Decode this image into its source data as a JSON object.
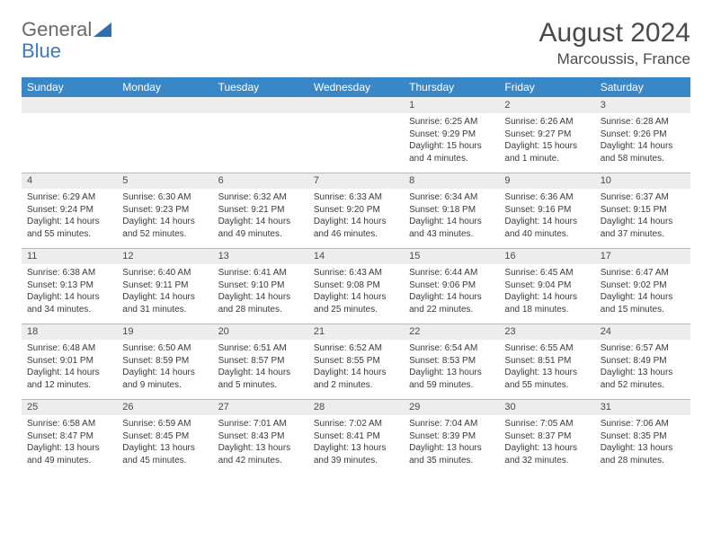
{
  "logo": {
    "text1": "General",
    "text2": "Blue"
  },
  "title": "August 2024",
  "location": "Marcoussis, France",
  "colors": {
    "header_bg": "#3a87c7",
    "header_text": "#ffffff",
    "daynum_bg": "#ededed",
    "text": "#3a3a3a",
    "border": "#b8b8b8"
  },
  "day_headers": [
    "Sunday",
    "Monday",
    "Tuesday",
    "Wednesday",
    "Thursday",
    "Friday",
    "Saturday"
  ],
  "weeks": [
    [
      {
        "n": "",
        "sr": "",
        "ss": "",
        "dl": ""
      },
      {
        "n": "",
        "sr": "",
        "ss": "",
        "dl": ""
      },
      {
        "n": "",
        "sr": "",
        "ss": "",
        "dl": ""
      },
      {
        "n": "",
        "sr": "",
        "ss": "",
        "dl": ""
      },
      {
        "n": "1",
        "sr": "6:25 AM",
        "ss": "9:29 PM",
        "dl": "15 hours and 4 minutes."
      },
      {
        "n": "2",
        "sr": "6:26 AM",
        "ss": "9:27 PM",
        "dl": "15 hours and 1 minute."
      },
      {
        "n": "3",
        "sr": "6:28 AM",
        "ss": "9:26 PM",
        "dl": "14 hours and 58 minutes."
      }
    ],
    [
      {
        "n": "4",
        "sr": "6:29 AM",
        "ss": "9:24 PM",
        "dl": "14 hours and 55 minutes."
      },
      {
        "n": "5",
        "sr": "6:30 AM",
        "ss": "9:23 PM",
        "dl": "14 hours and 52 minutes."
      },
      {
        "n": "6",
        "sr": "6:32 AM",
        "ss": "9:21 PM",
        "dl": "14 hours and 49 minutes."
      },
      {
        "n": "7",
        "sr": "6:33 AM",
        "ss": "9:20 PM",
        "dl": "14 hours and 46 minutes."
      },
      {
        "n": "8",
        "sr": "6:34 AM",
        "ss": "9:18 PM",
        "dl": "14 hours and 43 minutes."
      },
      {
        "n": "9",
        "sr": "6:36 AM",
        "ss": "9:16 PM",
        "dl": "14 hours and 40 minutes."
      },
      {
        "n": "10",
        "sr": "6:37 AM",
        "ss": "9:15 PM",
        "dl": "14 hours and 37 minutes."
      }
    ],
    [
      {
        "n": "11",
        "sr": "6:38 AM",
        "ss": "9:13 PM",
        "dl": "14 hours and 34 minutes."
      },
      {
        "n": "12",
        "sr": "6:40 AM",
        "ss": "9:11 PM",
        "dl": "14 hours and 31 minutes."
      },
      {
        "n": "13",
        "sr": "6:41 AM",
        "ss": "9:10 PM",
        "dl": "14 hours and 28 minutes."
      },
      {
        "n": "14",
        "sr": "6:43 AM",
        "ss": "9:08 PM",
        "dl": "14 hours and 25 minutes."
      },
      {
        "n": "15",
        "sr": "6:44 AM",
        "ss": "9:06 PM",
        "dl": "14 hours and 22 minutes."
      },
      {
        "n": "16",
        "sr": "6:45 AM",
        "ss": "9:04 PM",
        "dl": "14 hours and 18 minutes."
      },
      {
        "n": "17",
        "sr": "6:47 AM",
        "ss": "9:02 PM",
        "dl": "14 hours and 15 minutes."
      }
    ],
    [
      {
        "n": "18",
        "sr": "6:48 AM",
        "ss": "9:01 PM",
        "dl": "14 hours and 12 minutes."
      },
      {
        "n": "19",
        "sr": "6:50 AM",
        "ss": "8:59 PM",
        "dl": "14 hours and 9 minutes."
      },
      {
        "n": "20",
        "sr": "6:51 AM",
        "ss": "8:57 PM",
        "dl": "14 hours and 5 minutes."
      },
      {
        "n": "21",
        "sr": "6:52 AM",
        "ss": "8:55 PM",
        "dl": "14 hours and 2 minutes."
      },
      {
        "n": "22",
        "sr": "6:54 AM",
        "ss": "8:53 PM",
        "dl": "13 hours and 59 minutes."
      },
      {
        "n": "23",
        "sr": "6:55 AM",
        "ss": "8:51 PM",
        "dl": "13 hours and 55 minutes."
      },
      {
        "n": "24",
        "sr": "6:57 AM",
        "ss": "8:49 PM",
        "dl": "13 hours and 52 minutes."
      }
    ],
    [
      {
        "n": "25",
        "sr": "6:58 AM",
        "ss": "8:47 PM",
        "dl": "13 hours and 49 minutes."
      },
      {
        "n": "26",
        "sr": "6:59 AM",
        "ss": "8:45 PM",
        "dl": "13 hours and 45 minutes."
      },
      {
        "n": "27",
        "sr": "7:01 AM",
        "ss": "8:43 PM",
        "dl": "13 hours and 42 minutes."
      },
      {
        "n": "28",
        "sr": "7:02 AM",
        "ss": "8:41 PM",
        "dl": "13 hours and 39 minutes."
      },
      {
        "n": "29",
        "sr": "7:04 AM",
        "ss": "8:39 PM",
        "dl": "13 hours and 35 minutes."
      },
      {
        "n": "30",
        "sr": "7:05 AM",
        "ss": "8:37 PM",
        "dl": "13 hours and 32 minutes."
      },
      {
        "n": "31",
        "sr": "7:06 AM",
        "ss": "8:35 PM",
        "dl": "13 hours and 28 minutes."
      }
    ]
  ],
  "labels": {
    "sunrise": "Sunrise: ",
    "sunset": "Sunset: ",
    "daylight": "Daylight: "
  }
}
